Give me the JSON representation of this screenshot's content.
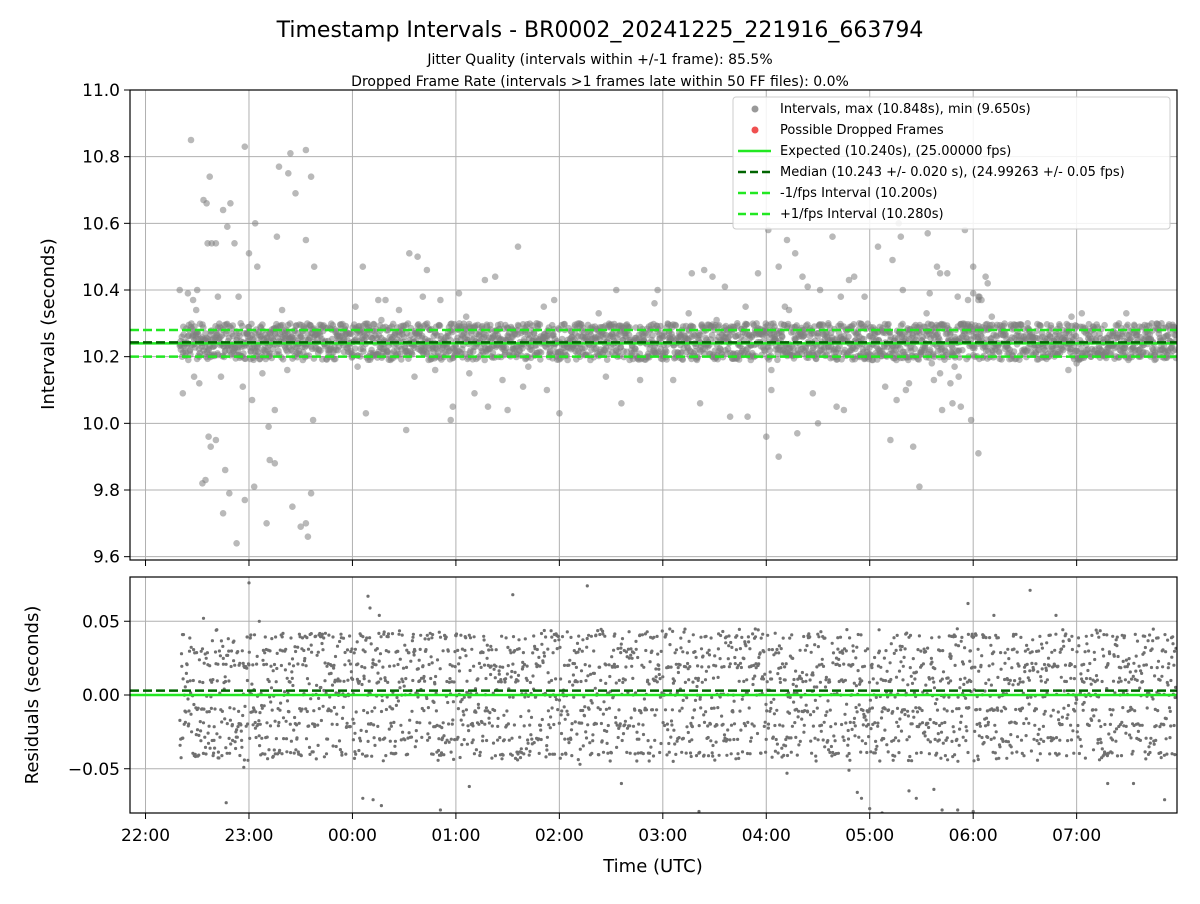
{
  "figure": {
    "title": "Timestamp Intervals - BR0002_20241225_221916_663794",
    "subtitle_1": "Jitter Quality (intervals within +/-1 frame): 85.5%",
    "subtitle_2": "Dropped Frame Rate (intervals >1 frames late within 50 FF files): 0.0%"
  },
  "chart_data": [
    {
      "type": "scatter",
      "panel": "intervals",
      "xlabel": "",
      "ylabel": "Intervals (seconds)",
      "x_unit": "hours since 22:00 UTC (2024-12-25)",
      "xlim": [
        -0.15,
        9.97
      ],
      "ylim": [
        9.59,
        11.0
      ],
      "yticks": [
        9.6,
        9.8,
        10.0,
        10.2,
        10.4,
        10.6,
        10.8,
        11.0
      ],
      "ytick_labels": [
        "9.6",
        "9.8",
        "10.0",
        "10.2",
        "10.4",
        "10.6",
        "10.8",
        "11.0"
      ],
      "grid": true,
      "legend_position": "top-right",
      "series": [
        {
          "name": "Intervals, max (10.848s), min (9.650s)",
          "kind": "points",
          "color": "#808080",
          "alpha": 0.55,
          "x_range": [
            0.33,
            9.97
          ],
          "y_band": [
            10.19,
            10.3
          ],
          "note": "dense band of ~2800 interval points; outliers listed in outliers"
        },
        {
          "name": "Possible Dropped Frames",
          "kind": "points",
          "color": "#f05050",
          "values": []
        },
        {
          "name": "Expected (10.240s), (25.00000 fps)",
          "kind": "hline",
          "y": 10.24,
          "color": "#22e822",
          "style": "solid"
        },
        {
          "name": "Median (10.243 +/- 0.020 s), (24.99263 +/- 0.05 fps)",
          "kind": "hline",
          "y": 10.243,
          "color": "#006400",
          "style": "dashed"
        },
        {
          "name": "-1/fps Interval (10.200s)",
          "kind": "hline",
          "y": 10.2,
          "color": "#22e822",
          "style": "dashed"
        },
        {
          "name": "+1/fps Interval (10.280s)",
          "kind": "hline",
          "y": 10.28,
          "color": "#22e822",
          "style": "dashed"
        }
      ],
      "outliers": [
        [
          0.33,
          10.4
        ],
        [
          0.36,
          10.09
        ],
        [
          0.41,
          10.39
        ],
        [
          0.44,
          10.85
        ],
        [
          0.46,
          10.37
        ],
        [
          0.47,
          10.14
        ],
        [
          0.49,
          10.34
        ],
        [
          0.5,
          10.4
        ],
        [
          0.55,
          9.82
        ],
        [
          0.56,
          10.67
        ],
        [
          0.58,
          9.83
        ],
        [
          0.59,
          10.66
        ],
        [
          0.6,
          10.54
        ],
        [
          0.61,
          9.96
        ],
        [
          0.62,
          10.74
        ],
        [
          0.63,
          9.93
        ],
        [
          0.64,
          10.54
        ],
        [
          0.68,
          10.54
        ],
        [
          0.7,
          10.38
        ],
        [
          0.73,
          10.14
        ],
        [
          0.75,
          10.64
        ],
        [
          0.77,
          9.86
        ],
        [
          0.79,
          10.59
        ],
        [
          0.81,
          9.79
        ],
        [
          0.82,
          10.66
        ],
        [
          0.86,
          10.54
        ],
        [
          0.9,
          10.38
        ],
        [
          0.92,
          10.3
        ],
        [
          0.96,
          10.83
        ],
        [
          1.0,
          10.51
        ],
        [
          1.03,
          10.07
        ],
        [
          1.06,
          10.6
        ],
        [
          1.08,
          10.47
        ],
        [
          1.11,
          10.29
        ],
        [
          1.13,
          10.15
        ],
        [
          1.19,
          9.99
        ],
        [
          1.2,
          10.27
        ],
        [
          1.25,
          10.04
        ],
        [
          1.27,
          10.56
        ],
        [
          1.29,
          10.77
        ],
        [
          1.32,
          10.34
        ],
        [
          1.35,
          10.27
        ],
        [
          1.37,
          10.16
        ],
        [
          1.38,
          10.75
        ],
        [
          1.4,
          10.81
        ],
        [
          1.45,
          10.69
        ],
        [
          1.46,
          10.21
        ],
        [
          1.5,
          9.69
        ],
        [
          1.52,
          10.19
        ],
        [
          1.55,
          10.55
        ],
        [
          1.57,
          9.66
        ],
        [
          1.6,
          10.74
        ],
        [
          1.63,
          10.47
        ],
        [
          0.52,
          10.12
        ],
        [
          0.68,
          9.95
        ],
        [
          0.75,
          9.73
        ],
        [
          0.96,
          9.77
        ],
        [
          1.17,
          9.7
        ],
        [
          1.2,
          9.89
        ],
        [
          1.25,
          9.88
        ],
        [
          1.42,
          9.75
        ],
        [
          1.55,
          9.7
        ],
        [
          1.6,
          9.79
        ],
        [
          0.88,
          9.64
        ],
        [
          0.94,
          10.11
        ],
        [
          1.05,
          9.81
        ],
        [
          1.62,
          10.01
        ],
        [
          1.55,
          10.82
        ],
        [
          0.58,
          10.24
        ],
        [
          2.03,
          10.35
        ],
        [
          2.05,
          10.17
        ],
        [
          2.06,
          10.29
        ],
        [
          2.1,
          10.47
        ],
        [
          2.13,
          10.03
        ],
        [
          2.2,
          10.21
        ],
        [
          2.28,
          10.31
        ],
        [
          2.32,
          10.37
        ],
        [
          2.38,
          10.29
        ],
        [
          2.45,
          10.34
        ],
        [
          2.52,
          9.98
        ],
        [
          2.55,
          10.51
        ],
        [
          2.6,
          10.14
        ],
        [
          2.63,
          10.5
        ],
        [
          2.68,
          10.38
        ],
        [
          2.72,
          10.46
        ],
        [
          2.8,
          10.16
        ],
        [
          2.85,
          10.37
        ],
        [
          2.95,
          10.01
        ],
        [
          2.97,
          10.05
        ],
        [
          3.03,
          10.39
        ],
        [
          3.1,
          10.32
        ],
        [
          3.13,
          10.15
        ],
        [
          3.18,
          10.09
        ],
        [
          3.28,
          10.43
        ],
        [
          3.31,
          10.05
        ],
        [
          3.38,
          10.44
        ],
        [
          3.45,
          10.13
        ],
        [
          3.5,
          10.04
        ],
        [
          3.55,
          10.28
        ],
        [
          3.6,
          10.53
        ],
        [
          3.65,
          10.11
        ],
        [
          3.7,
          10.17
        ],
        [
          3.78,
          10.3
        ],
        [
          3.85,
          10.35
        ],
        [
          3.88,
          10.1
        ],
        [
          3.95,
          10.37
        ],
        [
          4.0,
          10.03
        ],
        [
          4.08,
          10.19
        ],
        [
          4.15,
          10.29
        ],
        [
          4.2,
          10.2
        ],
        [
          4.3,
          10.19
        ],
        [
          4.38,
          10.33
        ],
        [
          4.45,
          10.14
        ],
        [
          4.5,
          10.26
        ],
        [
          4.55,
          10.4
        ],
        [
          4.6,
          10.06
        ],
        [
          4.7,
          10.21
        ],
        [
          4.78,
          10.13
        ],
        [
          4.88,
          10.28
        ],
        [
          4.92,
          10.36
        ],
        [
          4.95,
          10.4
        ],
        [
          2.25,
          10.37
        ],
        [
          5.1,
          10.13
        ],
        [
          5.17,
          10.21
        ],
        [
          5.25,
          10.33
        ],
        [
          5.28,
          10.45
        ],
        [
          5.36,
          10.06
        ],
        [
          5.4,
          10.46
        ],
        [
          5.48,
          10.44
        ],
        [
          5.52,
          10.31
        ],
        [
          5.6,
          10.41
        ],
        [
          5.65,
          10.02
        ],
        [
          5.68,
          10.29
        ],
        [
          5.72,
          10.3
        ],
        [
          5.8,
          10.35
        ],
        [
          5.85,
          10.19
        ],
        [
          5.92,
          10.45
        ],
        [
          5.98,
          10.22
        ],
        [
          6.02,
          10.58
        ],
        [
          6.05,
          10.1
        ],
        [
          6.08,
          10.29
        ],
        [
          6.12,
          10.47
        ],
        [
          6.2,
          10.55
        ],
        [
          6.22,
          10.34
        ],
        [
          6.28,
          10.51
        ],
        [
          6.35,
          10.44
        ],
        [
          6.4,
          10.41
        ],
        [
          6.45,
          10.09
        ],
        [
          6.5,
          10.0
        ],
        [
          6.52,
          10.4
        ],
        [
          6.6,
          10.3
        ],
        [
          6.64,
          10.56
        ],
        [
          6.68,
          10.05
        ],
        [
          6.72,
          10.38
        ],
        [
          6.75,
          10.04
        ],
        [
          6.8,
          10.43
        ],
        [
          6.85,
          10.44
        ],
        [
          6.9,
          10.3
        ],
        [
          6.95,
          10.38
        ],
        [
          7.03,
          10.19
        ],
        [
          7.08,
          10.53
        ],
        [
          7.15,
          10.11
        ],
        [
          7.22,
          10.49
        ],
        [
          7.26,
          10.07
        ],
        [
          7.3,
          10.56
        ],
        [
          7.32,
          10.4
        ],
        [
          7.35,
          10.1
        ],
        [
          7.38,
          10.12
        ],
        [
          7.42,
          10.28
        ],
        [
          7.5,
          10.22
        ],
        [
          7.56,
          10.57
        ],
        [
          7.6,
          10.18
        ],
        [
          7.65,
          10.47
        ],
        [
          7.68,
          10.45
        ],
        [
          7.7,
          10.04
        ],
        [
          7.75,
          10.45
        ],
        [
          7.78,
          10.12
        ],
        [
          7.8,
          10.06
        ],
        [
          7.85,
          10.38
        ],
        [
          7.86,
          10.14
        ],
        [
          7.88,
          10.05
        ],
        [
          7.92,
          10.58
        ],
        [
          7.95,
          10.37
        ],
        [
          7.98,
          10.01
        ],
        [
          8.0,
          10.47
        ],
        [
          8.05,
          10.38
        ],
        [
          8.08,
          10.37
        ],
        [
          8.12,
          10.44
        ],
        [
          8.18,
          10.32
        ],
        [
          6.12,
          9.9
        ],
        [
          6.3,
          9.97
        ],
        [
          7.2,
          9.95
        ],
        [
          7.42,
          9.93
        ],
        [
          7.48,
          9.81
        ],
        [
          8.05,
          9.91
        ],
        [
          5.82,
          10.02
        ],
        [
          6.0,
          9.96
        ],
        [
          6.05,
          10.16
        ],
        [
          7.62,
          10.13
        ],
        [
          7.68,
          10.15
        ],
        [
          7.82,
          10.17
        ],
        [
          7.55,
          10.33
        ],
        [
          7.58,
          10.39
        ],
        [
          8.05,
          10.37
        ],
        [
          6.18,
          10.35
        ],
        [
          6.9,
          10.26
        ],
        [
          8.92,
          10.16
        ],
        [
          8.95,
          10.32
        ],
        [
          9.0,
          10.18
        ],
        [
          9.05,
          10.33
        ],
        [
          9.48,
          10.33
        ],
        [
          9.6,
          10.22
        ],
        [
          9.82,
          10.3
        ],
        [
          9.88,
          10.22
        ],
        [
          8.0,
          10.39
        ],
        [
          8.06,
          10.38
        ],
        [
          7.28,
          10.6
        ],
        [
          8.14,
          10.42
        ]
      ]
    },
    {
      "type": "scatter",
      "panel": "residuals",
      "xlabel": "Time (UTC)",
      "ylabel": "Residuals (seconds)",
      "x_unit": "hours since 22:00 UTC (2024-12-25)",
      "xlim": [
        -0.15,
        9.97
      ],
      "ylim": [
        -0.08,
        0.08
      ],
      "yticks": [
        -0.05,
        0.0,
        0.05
      ],
      "ytick_labels": [
        "−0.05",
        "0.00",
        "0.05"
      ],
      "xticks": [
        0,
        1,
        2,
        3,
        4,
        5,
        6,
        7,
        8,
        9
      ],
      "xtick_labels": [
        "22:00",
        "23:00",
        "00:00",
        "01:00",
        "02:00",
        "03:00",
        "04:00",
        "05:00",
        "06:00",
        "07:00"
      ],
      "grid": true,
      "series": [
        {
          "name": "residuals",
          "kind": "points",
          "color": "#707070",
          "x_range": [
            0.33,
            9.97
          ],
          "y_band": [
            -0.045,
            0.045
          ],
          "note": "~2800 residual points, quantized near multiples of 0.01 s"
        },
        {
          "name": "expected-zero",
          "kind": "hline",
          "y": 0.0,
          "color": "#22e822",
          "style": "solid"
        },
        {
          "name": "median-offset",
          "kind": "hline",
          "y": 0.003,
          "color": "#006400",
          "style": "dashed"
        }
      ],
      "outliers": [
        [
          1.0,
          0.076
        ],
        [
          4.27,
          0.074
        ],
        [
          2.15,
          0.067
        ],
        [
          8.55,
          0.071
        ],
        [
          7.95,
          0.062
        ],
        [
          8.2,
          0.054
        ],
        [
          0.56,
          0.052
        ],
        [
          2.17,
          0.059
        ],
        [
          2.26,
          0.054
        ],
        [
          2.1,
          -0.07
        ],
        [
          2.2,
          -0.071
        ],
        [
          2.28,
          -0.075
        ],
        [
          0.78,
          -0.073
        ],
        [
          2.02,
          -0.043
        ],
        [
          2.85,
          -0.078
        ],
        [
          3.13,
          -0.062
        ],
        [
          5.35,
          -0.079
        ],
        [
          6.88,
          -0.066
        ],
        [
          6.92,
          -0.07
        ],
        [
          7.0,
          -0.077
        ],
        [
          7.12,
          -0.08
        ],
        [
          7.38,
          -0.065
        ],
        [
          7.45,
          -0.07
        ],
        [
          7.62,
          -0.064
        ],
        [
          7.7,
          -0.078
        ],
        [
          7.85,
          -0.078
        ],
        [
          8.0,
          -0.079
        ],
        [
          9.3,
          -0.06
        ],
        [
          9.55,
          -0.06
        ],
        [
          9.85,
          -0.071
        ],
        [
          6.8,
          -0.051
        ],
        [
          1.1,
          0.05
        ],
        [
          0.95,
          -0.049
        ],
        [
          3.6,
          -0.04
        ],
        [
          4.2,
          -0.047
        ],
        [
          5.1,
          -0.045
        ],
        [
          6.2,
          -0.053
        ],
        [
          8.8,
          0.054
        ],
        [
          9.2,
          0.042
        ],
        [
          4.6,
          -0.06
        ],
        [
          3.55,
          0.068
        ]
      ]
    }
  ]
}
